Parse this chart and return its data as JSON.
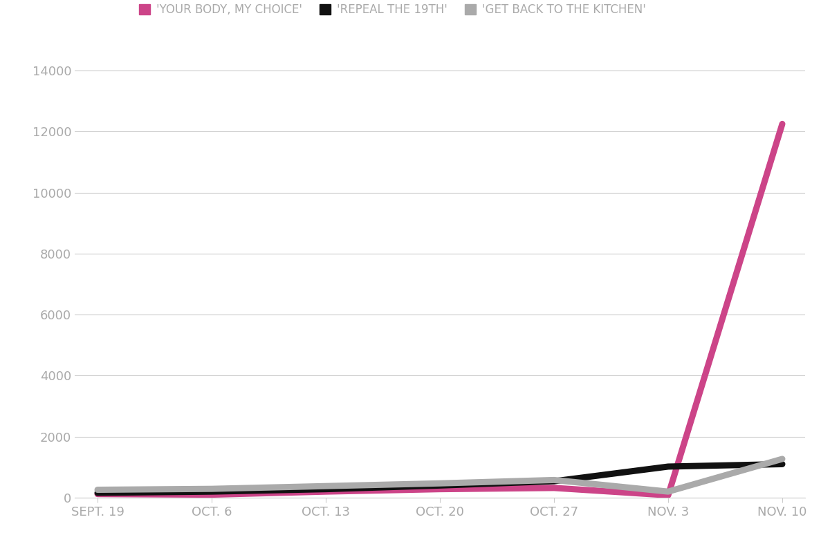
{
  "x_labels": [
    "SEPT. 19",
    "OCT. 6",
    "OCT. 13",
    "OCT. 20",
    "OCT. 27",
    "NOV. 3",
    "NOV. 10"
  ],
  "x_values": [
    0,
    1,
    2,
    3,
    4,
    5,
    6
  ],
  "series": [
    {
      "label": "'YOUR BODY, MY CHOICE'",
      "color": "#cc4488",
      "linewidth": 6.5,
      "values": [
        120,
        100,
        200,
        280,
        320,
        80,
        12250
      ]
    },
    {
      "label": "'REPEAL THE 19TH'",
      "color": "#111111",
      "linewidth": 6.5,
      "values": [
        160,
        200,
        280,
        400,
        540,
        1020,
        1100
      ]
    },
    {
      "label": "'GET BACK TO THE KITCHEN'",
      "color": "#aaaaaa",
      "linewidth": 6.5,
      "values": [
        260,
        290,
        380,
        470,
        580,
        200,
        1270
      ]
    }
  ],
  "ylim": [
    0,
    14500
  ],
  "yticks": [
    0,
    2000,
    4000,
    6000,
    8000,
    10000,
    12000,
    14000
  ],
  "background_color": "#ffffff",
  "grid_color": "#cccccc",
  "font_color": "#aaaaaa",
  "legend_fontsize": 12,
  "tick_fontsize": 13,
  "legend_square_size": 14
}
